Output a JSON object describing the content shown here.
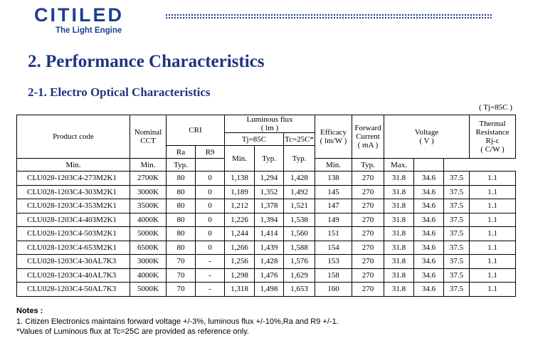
{
  "brand": {
    "name": "CITILED",
    "tagline": "The Light Engine",
    "color": "#1d3f8f"
  },
  "heading": "2. Performance Characteristics",
  "subheading": "2-1. Electro Optical Characteristics",
  "condition": "( Tj=85C )",
  "table": {
    "headers": {
      "product_code": "Product code",
      "nominal_cct": [
        "Nominal",
        "CCT"
      ],
      "cri": "CRI",
      "ra": "Ra",
      "r9": "R9",
      "luminous_flux": [
        "Luminous flux",
        "( lm )"
      ],
      "tj85": "Tj=85C",
      "tc25": "Tc=25C*",
      "efficacy": [
        "Efficacy",
        "( lm/W )"
      ],
      "forward_current": [
        "Forward",
        "Current",
        "( mA )"
      ],
      "voltage": [
        "Voltage",
        "( V )"
      ],
      "thermal": [
        "Thermal",
        "Resistance",
        "Rj-c",
        "( C/W )"
      ],
      "min": "Min.",
      "typ": "Typ.",
      "max": "Max."
    },
    "rows": [
      [
        "CLU028-1203C4-273M2K1",
        "2700K",
        "80",
        "0",
        "1,138",
        "1,294",
        "1,428",
        "138",
        "270",
        "31.8",
        "34.6",
        "37.5",
        "1.1"
      ],
      [
        "CLU028-1203C4-303M2K1",
        "3000K",
        "80",
        "0",
        "1,189",
        "1,352",
        "1,492",
        "145",
        "270",
        "31.8",
        "34.6",
        "37.5",
        "1.1"
      ],
      [
        "CLU028-1203C4-353M2K1",
        "3500K",
        "80",
        "0",
        "1,212",
        "1,378",
        "1,521",
        "147",
        "270",
        "31.8",
        "34.6",
        "37.5",
        "1.1"
      ],
      [
        "CLU028-1203C4-403M2K1",
        "4000K",
        "80",
        "0",
        "1,226",
        "1,394",
        "1,538",
        "149",
        "270",
        "31.8",
        "34.6",
        "37.5",
        "1.1"
      ],
      [
        "CLU028-1203C4-503M2K1",
        "5000K",
        "80",
        "0",
        "1,244",
        "1,414",
        "1,560",
        "151",
        "270",
        "31.8",
        "34.6",
        "37.5",
        "1.1"
      ],
      [
        "CLU028-1203C4-653M2K1",
        "6500K",
        "80",
        "0",
        "1,266",
        "1,439",
        "1,588",
        "154",
        "270",
        "31.8",
        "34.6",
        "37.5",
        "1.1"
      ],
      [
        "CLU028-1203C4-30AL7K3",
        "3000K",
        "70",
        "-",
        "1,256",
        "1,428",
        "1,576",
        "153",
        "270",
        "31.8",
        "34.6",
        "37.5",
        "1.1"
      ],
      [
        "CLU028-1203C4-40AL7K3",
        "4000K",
        "70",
        "-",
        "1,298",
        "1,476",
        "1,629",
        "158",
        "270",
        "31.8",
        "34.6",
        "37.5",
        "1.1"
      ],
      [
        "CLU028-1203C4-50AL7K3",
        "5000K",
        "70",
        "-",
        "1,318",
        "1,498",
        "1,653",
        "160",
        "270",
        "31.8",
        "34.6",
        "37.5",
        "1.1"
      ]
    ]
  },
  "notes": {
    "title": "Notes :",
    "items": [
      "1. Citizen Electronics maintains forward voltage +/-3%, luminous flux +/-10%,Ra and R9 +/-1.",
      "*Values of Luminous flux at Tc=25C are provided as reference only."
    ]
  }
}
